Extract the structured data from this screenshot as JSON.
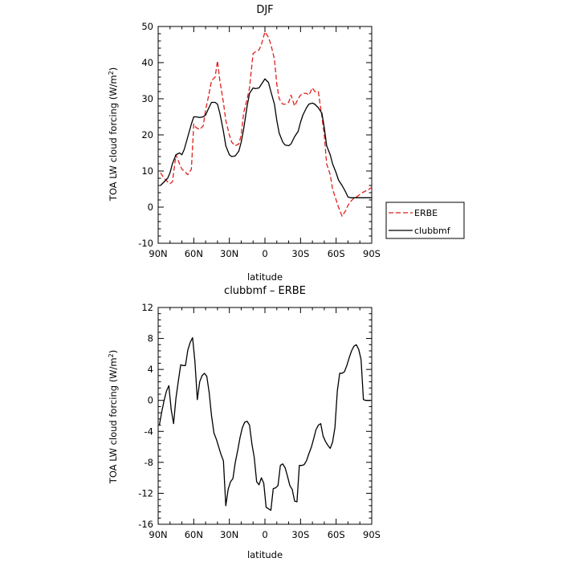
{
  "chart_data": [
    {
      "type": "line",
      "title": "DJF",
      "xlabel": "latitude",
      "ylabel_main": "TOA LW cloud forcing (W/m",
      "ylabel_sup": "2",
      "ylabel_close": ")",
      "xlim": [
        -90,
        90
      ],
      "ylim": [
        -10,
        50
      ],
      "x_ticks": [
        -90,
        -60,
        -30,
        0,
        30,
        60,
        90
      ],
      "x_tick_labels": [
        "90N",
        "60N",
        "30N",
        "0",
        "30S",
        "60S",
        "90S"
      ],
      "y_ticks": [
        -10,
        0,
        10,
        20,
        30,
        40,
        50
      ],
      "y_tick_labels": [
        "-10",
        "0",
        "10",
        "20",
        "30",
        "40",
        "50"
      ],
      "legend": {
        "placement": "right",
        "entries": [
          "ERBE",
          "clubbmf"
        ]
      },
      "series": [
        {
          "name": "ERBE",
          "color": "#e0201e",
          "dash": "dashed",
          "x": [
            -88,
            -85,
            -82,
            -80,
            -78,
            -75,
            -72,
            -70,
            -68,
            -65,
            -62,
            -60,
            -58,
            -55,
            -52,
            -50,
            -48,
            -45,
            -42,
            -40,
            -38,
            -35,
            -33,
            -30,
            -28,
            -25,
            -22,
            -20,
            -18,
            -15,
            -13,
            -10,
            -8,
            -5,
            -3,
            0,
            3,
            5,
            8,
            10,
            12,
            15,
            17,
            20,
            22,
            25,
            28,
            30,
            32,
            35,
            37,
            40,
            42,
            45,
            48,
            50,
            52,
            55,
            57,
            60,
            62,
            65,
            68,
            70,
            72,
            75,
            78,
            80,
            82,
            85,
            88,
            90
          ],
          "y": [
            9.5,
            8,
            7,
            6.5,
            7,
            14.5,
            12,
            10.5,
            10,
            9,
            10.5,
            23,
            22,
            21.5,
            22.5,
            27,
            30,
            35,
            36,
            40.5,
            35,
            29,
            24,
            20,
            18,
            17,
            17.5,
            20,
            26,
            30,
            33,
            42.5,
            43,
            43.5,
            45,
            48.5,
            47,
            45,
            41,
            34,
            30,
            28.5,
            28.5,
            29,
            31,
            28,
            30,
            31,
            31.5,
            31.5,
            31,
            33,
            32,
            32,
            25,
            20,
            12,
            9,
            5,
            2,
            0,
            -2.5,
            -1,
            0.5,
            1.5,
            2.5,
            3,
            3.5,
            4,
            4.5,
            5,
            5.5
          ]
        },
        {
          "name": "clubbmf",
          "color": "#000000",
          "dash": "solid",
          "x": [
            -88,
            -85,
            -82,
            -80,
            -78,
            -75,
            -72,
            -70,
            -68,
            -65,
            -62,
            -60,
            -58,
            -55,
            -52,
            -50,
            -48,
            -45,
            -42,
            -40,
            -38,
            -35,
            -33,
            -30,
            -28,
            -25,
            -22,
            -20,
            -18,
            -15,
            -13,
            -10,
            -8,
            -5,
            -3,
            0,
            3,
            5,
            8,
            10,
            12,
            15,
            17,
            20,
            22,
            25,
            28,
            30,
            32,
            35,
            37,
            40,
            42,
            45,
            48,
            50,
            52,
            55,
            57,
            60,
            62,
            65,
            68,
            70,
            72,
            75,
            78,
            80,
            82,
            85,
            88,
            90
          ],
          "y": [
            6,
            7,
            8,
            9.5,
            12,
            14.5,
            15,
            14.5,
            16,
            19.5,
            23,
            25,
            25,
            24.8,
            25,
            25.5,
            27,
            29,
            29,
            28.5,
            26,
            21,
            17,
            14.5,
            14,
            14.2,
            15.5,
            18,
            21.5,
            28,
            31.5,
            33,
            32.8,
            33,
            34,
            35.5,
            34.5,
            32,
            28.5,
            24,
            20.5,
            18,
            17.2,
            17,
            17.5,
            19.5,
            21,
            23.5,
            25.5,
            27.5,
            28.5,
            28.8,
            28.5,
            27.5,
            26,
            22,
            17,
            14.5,
            12,
            9.5,
            7.5,
            6,
            4.2,
            2.8,
            2.6,
            2.6,
            2.6,
            2.6,
            2.6,
            2.6,
            2.6,
            2.6
          ]
        }
      ]
    },
    {
      "type": "line",
      "title": "clubbmf – ERBE",
      "xlabel": "latitude",
      "ylabel_main": "TOA LW cloud forcing (W/m",
      "ylabel_sup": "2",
      "ylabel_close": ")",
      "xlim": [
        -90,
        90
      ],
      "ylim": [
        -16,
        12
      ],
      "x_ticks": [
        -90,
        -60,
        -30,
        0,
        30,
        60,
        90
      ],
      "x_tick_labels": [
        "90N",
        "60N",
        "30N",
        "0",
        "30S",
        "60S",
        "90S"
      ],
      "y_ticks": [
        -16,
        -12,
        -8,
        -4,
        0,
        4,
        8,
        12
      ],
      "y_tick_labels": [
        "-16",
        "-12",
        "-8",
        "-4",
        "0",
        "4",
        "8",
        "12"
      ],
      "series": [
        {
          "name": "",
          "color": "#000000",
          "dash": "solid",
          "x": [
            -89,
            -87,
            -85,
            -83,
            -81,
            -79,
            -77,
            -75,
            -73,
            -71,
            -69,
            -67,
            -65,
            -63,
            -61,
            -59,
            -57,
            -55,
            -53,
            -51,
            -49,
            -47,
            -45,
            -43,
            -41,
            -39,
            -37,
            -35,
            -33,
            -31,
            -29,
            -27,
            -25,
            -23,
            -21,
            -19,
            -17,
            -15,
            -13,
            -11,
            -9,
            -7,
            -5,
            -3,
            -1,
            1,
            3,
            5,
            7,
            9,
            11,
            13,
            15,
            17,
            19,
            21,
            23,
            25,
            27,
            29,
            31,
            33,
            35,
            37,
            39,
            41,
            43,
            45,
            47,
            49,
            51,
            53,
            55,
            57,
            59,
            61,
            63,
            65,
            67,
            69,
            71,
            73,
            75,
            77,
            79,
            81,
            83,
            85,
            87,
            89
          ],
          "y": [
            -3.2,
            -1.5,
            0,
            1.2,
            1.9,
            -1.2,
            -3,
            0.3,
            2.5,
            4.6,
            4.5,
            4.5,
            6.5,
            7.5,
            8.1,
            5,
            0.1,
            2.4,
            3.2,
            3.5,
            3.1,
            1,
            -2,
            -4.2,
            -5,
            -6,
            -7,
            -7.8,
            -13.6,
            -11.5,
            -10.5,
            -10.1,
            -8,
            -6.5,
            -4.8,
            -3.5,
            -2.8,
            -2.7,
            -3.2,
            -5.6,
            -7.4,
            -10.5,
            -10.9,
            -10,
            -10.7,
            -13.8,
            -14,
            -14.2,
            -11.4,
            -11.3,
            -11,
            -8.4,
            -8.2,
            -8.7,
            -9.8,
            -11,
            -11.5,
            -13,
            -13.1,
            -8.4,
            -8.4,
            -8.3,
            -7.8,
            -6.9,
            -6.1,
            -5,
            -3.8,
            -3.2,
            -3,
            -4.6,
            -5.3,
            -5.8,
            -6.2,
            -5.4,
            -3.5,
            1.2,
            3.5,
            3.5,
            3.7,
            4.5,
            5.5,
            6.4,
            7,
            7.2,
            6.6,
            5.3,
            0.1,
            0,
            0,
            0
          ]
        }
      ]
    }
  ]
}
